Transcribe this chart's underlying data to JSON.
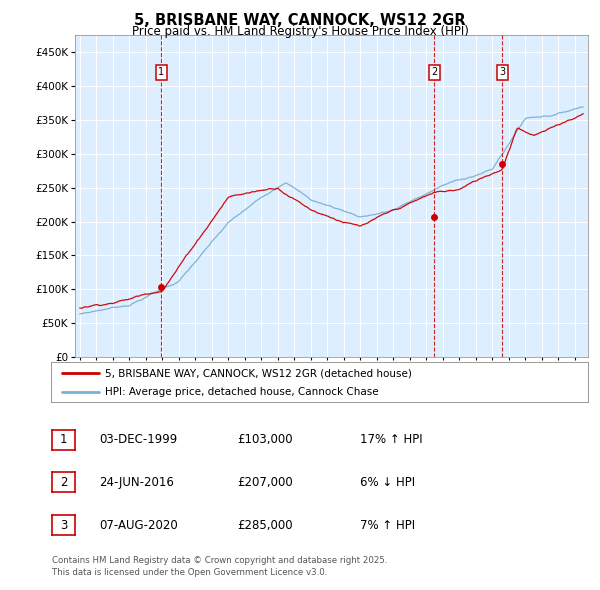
{
  "title": "5, BRISBANE WAY, CANNOCK, WS12 2GR",
  "subtitle": "Price paid vs. HM Land Registry's House Price Index (HPI)",
  "legend_line1": "5, BRISBANE WAY, CANNOCK, WS12 2GR (detached house)",
  "legend_line2": "HPI: Average price, detached house, Cannock Chase",
  "red_color": "#cc0000",
  "blue_color": "#7ab0d4",
  "bg_color": "#ddeeff",
  "annotations": [
    {
      "num": 1,
      "date": "03-DEC-1999",
      "price": "£103,000",
      "pct": "17% ↑ HPI",
      "yr": 1999.92,
      "y_val": 103000
    },
    {
      "num": 2,
      "date": "24-JUN-2016",
      "price": "£207,000",
      "pct": "6% ↓ HPI",
      "yr": 2016.48,
      "y_val": 207000
    },
    {
      "num": 3,
      "date": "07-AUG-2020",
      "price": "£285,000",
      "pct": "7% ↑ HPI",
      "yr": 2020.6,
      "y_val": 285000
    }
  ],
  "footer": "Contains HM Land Registry data © Crown copyright and database right 2025.\nThis data is licensed under the Open Government Licence v3.0.",
  "yticks": [
    0,
    50000,
    100000,
    150000,
    200000,
    250000,
    300000,
    350000,
    400000,
    450000
  ],
  "ylim": [
    0,
    475000
  ],
  "xlim_start": 1994.7,
  "xlim_end": 2025.8
}
